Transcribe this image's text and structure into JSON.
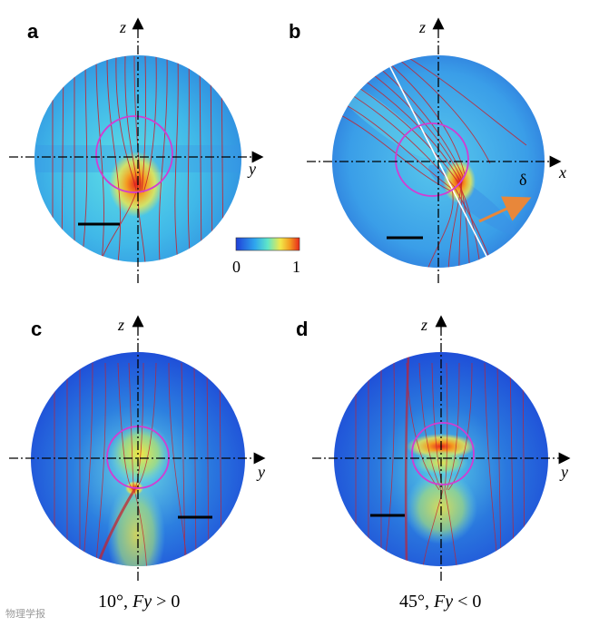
{
  "panels": [
    {
      "letter": "a",
      "axes": {
        "vertical": "z",
        "horizontal": "y"
      }
    },
    {
      "letter": "b",
      "axes": {
        "vertical": "z",
        "horizontal": "x"
      },
      "arrow_label": "δ"
    },
    {
      "letter": "c",
      "axes": {
        "vertical": "z",
        "horizontal": "y"
      },
      "caption": {
        "angle": "10°, ",
        "force": "Fy",
        "relation": " > 0"
      }
    },
    {
      "letter": "d",
      "axes": {
        "vertical": "z",
        "horizontal": "y"
      },
      "caption": {
        "angle": "45°, ",
        "force": "Fy",
        "relation": " < 0"
      }
    }
  ],
  "colorbar": {
    "min_label": "0",
    "max_label": "1"
  },
  "colors": {
    "streamline": "#c8202a",
    "droplet_outline": "#d23cd2",
    "interface_line": "#ffffff",
    "arrow": "#e8873a",
    "field_low": "#1f4fd8",
    "field_mid": "#37c3e8",
    "field_high": "#e8261c"
  },
  "watermark": "物理学报"
}
